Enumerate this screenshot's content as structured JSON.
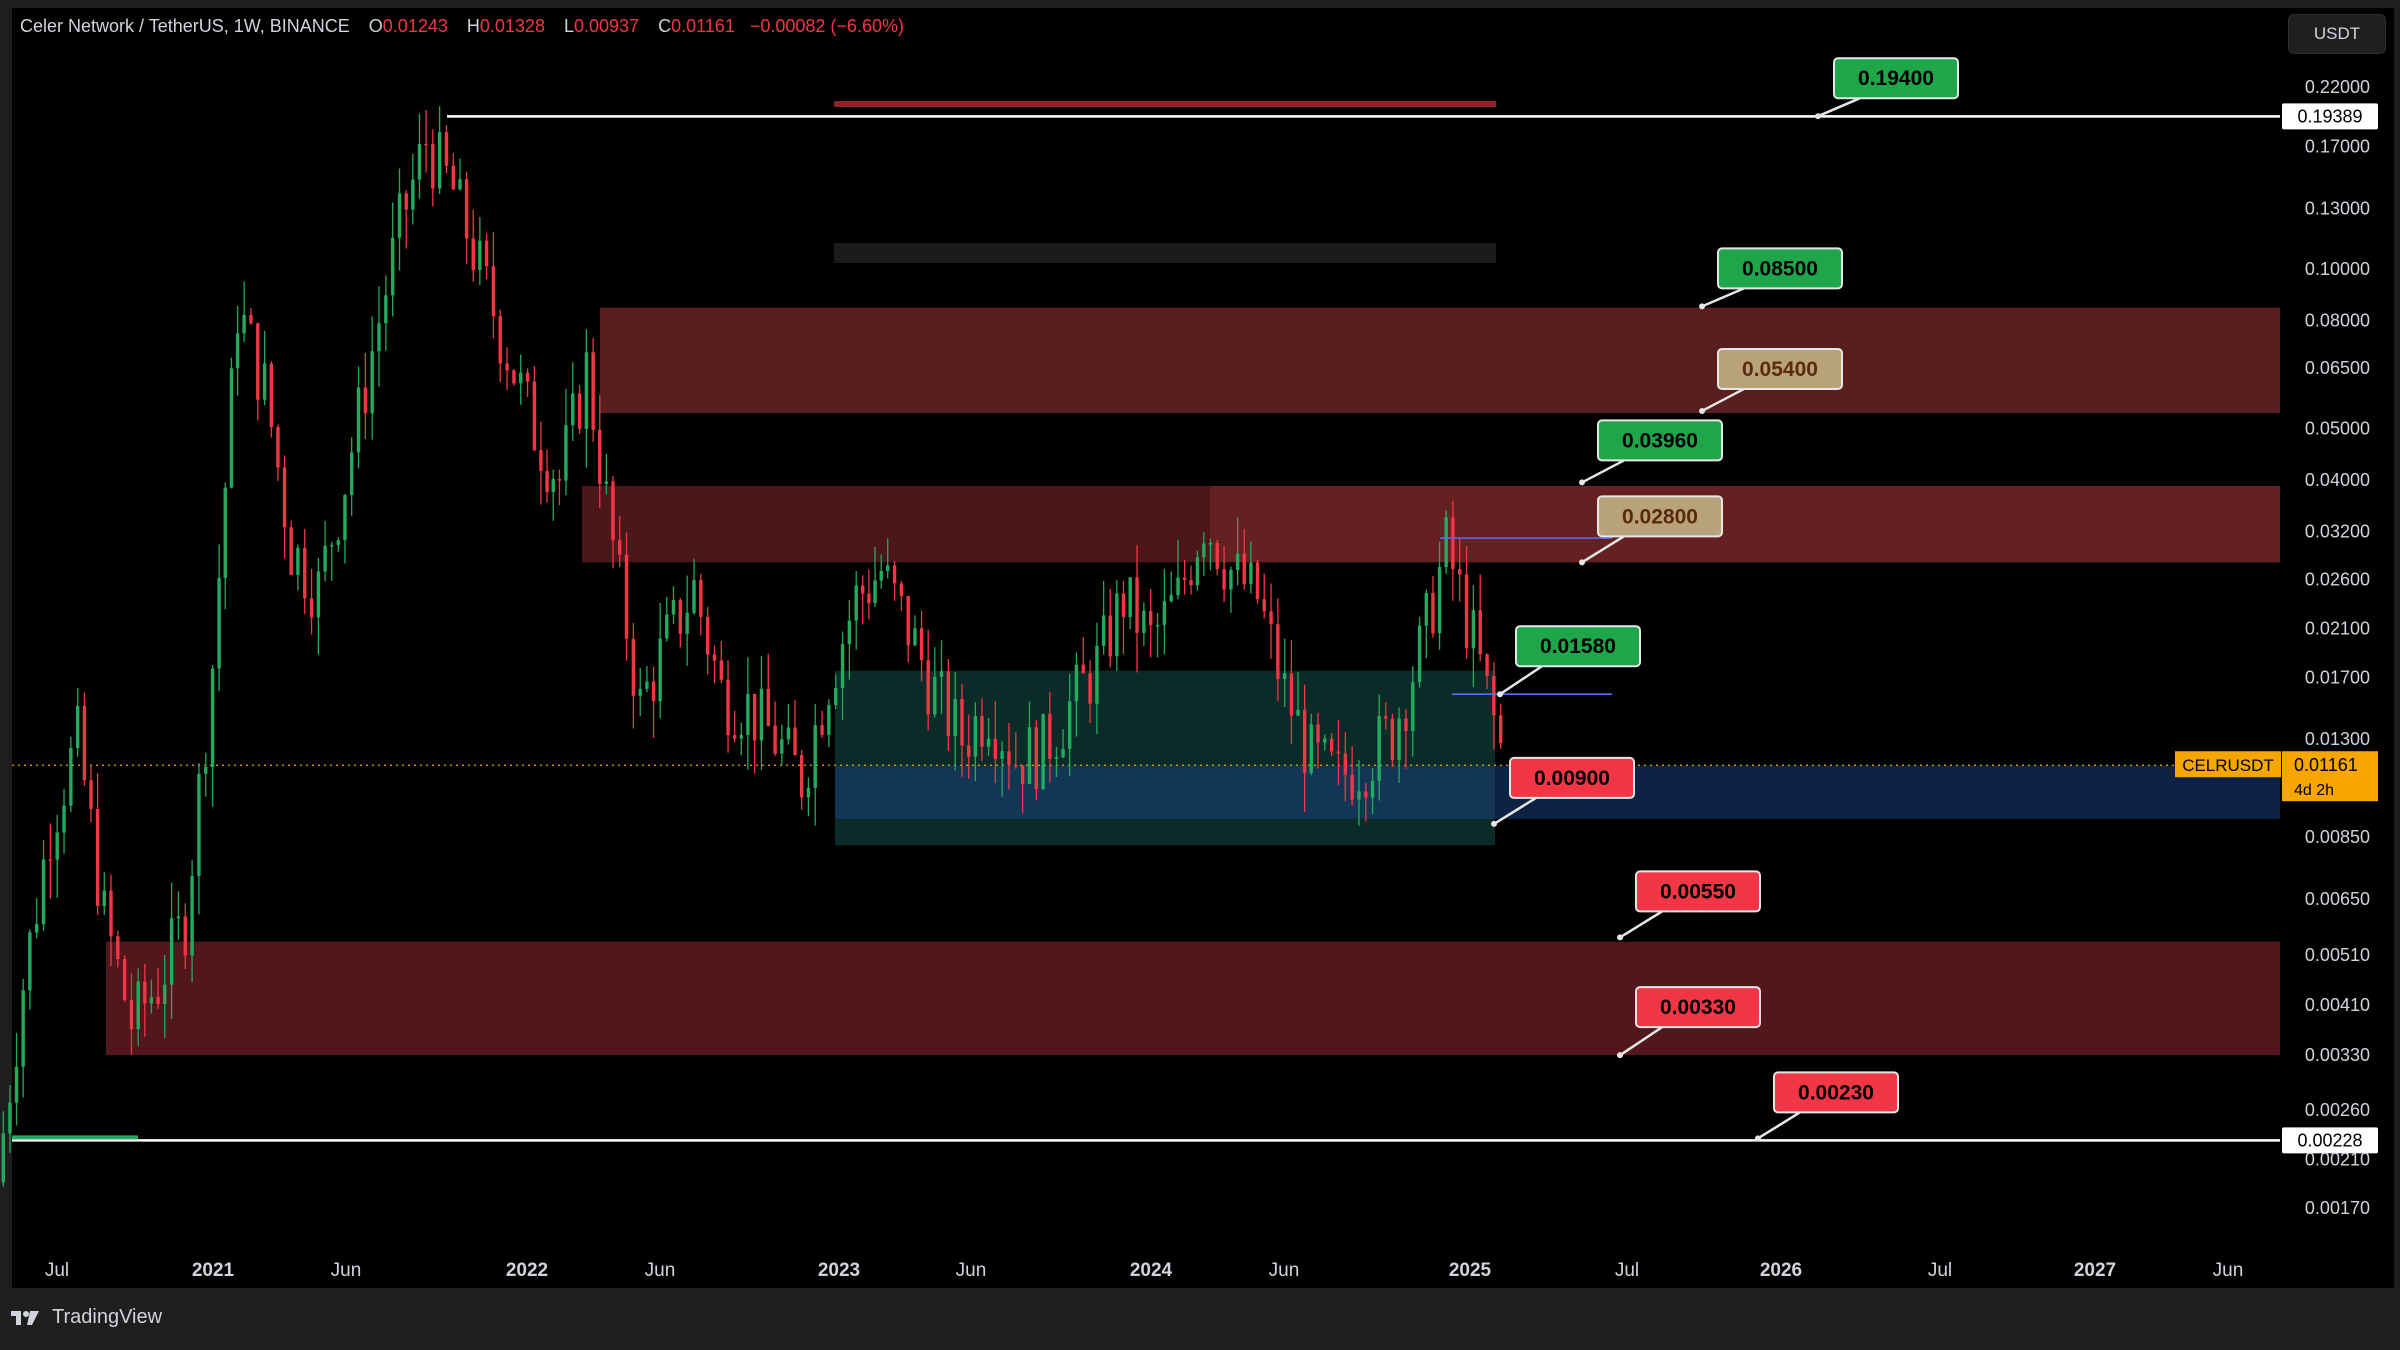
{
  "header": {
    "symbol": "Celer Network / TetherUS, 1W, BINANCE",
    "open_key": "O",
    "open": "0.01243",
    "high_key": "H",
    "high": "0.01328",
    "low_key": "L",
    "low": "0.00937",
    "close_key": "C",
    "close": "0.01161",
    "change": "−0.00082 (−6.60%)"
  },
  "currency_button": "USDT",
  "brand": {
    "name": "TradingView",
    "icon": "tradingview-logo-icon"
  },
  "colors": {
    "up": "#22ab5e",
    "down": "#f23645",
    "resistance_zone": "#6b2323",
    "support_zone": "#5a1a1f",
    "range_box": "#0d3a34",
    "blue_zone": "#1a3f7a",
    "price_tag": "#f7a600"
  },
  "chart_data": {
    "type": "candlestick",
    "interval": "1W",
    "x_axis": [
      "Jul",
      "2021",
      "Jun",
      "2022",
      "Jun",
      "2023",
      "Jun",
      "2024",
      "Jun",
      "2025",
      "Jul",
      "2026",
      "Jul",
      "2027",
      "Jun"
    ],
    "y_scale": "log",
    "y_ticks": [
      "0.22000",
      "0.17000",
      "0.13000",
      "0.10000",
      "0.08000",
      "0.06500",
      "0.05000",
      "0.04000",
      "0.03200",
      "0.02600",
      "0.02100",
      "0.01700",
      "0.01300",
      "0.00850",
      "0.00650",
      "0.00510",
      "0.00410",
      "0.00330",
      "0.00260",
      "0.00210",
      "0.00170"
    ],
    "ylim": [
      0.0016,
      0.235
    ],
    "last_price": {
      "symbol": "CELRUSDT",
      "value": "0.01161",
      "countdown": "4d 2h"
    },
    "horizontal_lines": [
      {
        "label": "0.19389",
        "price": 0.19389
      },
      {
        "label": "0.00228",
        "price": 0.00228
      }
    ],
    "levels": [
      {
        "label": "0.19400",
        "price": 0.194,
        "style": "green"
      },
      {
        "label": "0.08500",
        "price": 0.085,
        "style": "green"
      },
      {
        "label": "0.05400",
        "price": 0.054,
        "style": "tan"
      },
      {
        "label": "0.03960",
        "price": 0.0396,
        "style": "green"
      },
      {
        "label": "0.02800",
        "price": 0.028,
        "style": "tan"
      },
      {
        "label": "0.01580",
        "price": 0.0158,
        "style": "green"
      },
      {
        "label": "0.00900",
        "price": 0.009,
        "style": "red"
      },
      {
        "label": "0.00550",
        "price": 0.0055,
        "style": "red"
      },
      {
        "label": "0.00330",
        "price": 0.0033,
        "style": "red"
      },
      {
        "label": "0.00230",
        "price": 0.0023,
        "style": "red"
      }
    ],
    "zones": [
      {
        "name": "upper-resistance",
        "from": 0.0535,
        "to": 0.0845
      },
      {
        "name": "mid-resistance",
        "from": 0.028,
        "to": 0.039
      },
      {
        "name": "lower-support",
        "from": 0.0033,
        "to": 0.0054
      },
      {
        "name": "blue-support",
        "from": 0.0092,
        "to": 0.0116
      },
      {
        "name": "range-box",
        "from": 0.0082,
        "to": 0.0175
      }
    ],
    "price_path": [
      [
        "2020-06",
        0.0019
      ],
      [
        "2020-07",
        0.0045
      ],
      [
        "2020-08",
        0.009
      ],
      [
        "2020-09",
        0.013
      ],
      [
        "2020-10",
        0.006
      ],
      [
        "2020-11",
        0.0038
      ],
      [
        "2020-12",
        0.0045
      ],
      [
        "2021-01",
        0.006
      ],
      [
        "2021-02",
        0.018
      ],
      [
        "2021-03",
        0.085
      ],
      [
        "2021-04",
        0.06
      ],
      [
        "2021-05",
        0.03
      ],
      [
        "2021-06",
        0.025
      ],
      [
        "2021-07",
        0.04
      ],
      [
        "2021-08",
        0.07
      ],
      [
        "2021-09",
        0.12
      ],
      [
        "2021-10",
        0.175
      ],
      [
        "2021-11",
        0.14
      ],
      [
        "2021-12",
        0.1
      ],
      [
        "2022-01",
        0.07
      ],
      [
        "2022-02",
        0.05
      ],
      [
        "2022-03",
        0.04
      ],
      [
        "2022-04",
        0.065
      ],
      [
        "2022-05",
        0.03
      ],
      [
        "2022-06",
        0.015
      ],
      [
        "2022-07",
        0.02
      ],
      [
        "2022-08",
        0.025
      ],
      [
        "2022-09",
        0.016
      ],
      [
        "2022-10",
        0.015
      ],
      [
        "2022-11",
        0.013
      ],
      [
        "2022-12",
        0.011
      ],
      [
        "2023-01",
        0.017
      ],
      [
        "2023-02",
        0.024
      ],
      [
        "2023-03",
        0.027
      ],
      [
        "2023-04",
        0.021
      ],
      [
        "2023-05",
        0.016
      ],
      [
        "2023-06",
        0.013
      ],
      [
        "2023-07",
        0.015
      ],
      [
        "2023-08",
        0.012
      ],
      [
        "2023-09",
        0.0125
      ],
      [
        "2023-10",
        0.015
      ],
      [
        "2023-11",
        0.018
      ],
      [
        "2023-12",
        0.024
      ],
      [
        "2024-01",
        0.02
      ],
      [
        "2024-02",
        0.024
      ],
      [
        "2024-03",
        0.034
      ],
      [
        "2024-04",
        0.027
      ],
      [
        "2024-05",
        0.024
      ],
      [
        "2024-06",
        0.016
      ],
      [
        "2024-07",
        0.012
      ],
      [
        "2024-08",
        0.011
      ],
      [
        "2024-09",
        0.012
      ],
      [
        "2024-10",
        0.0135
      ],
      [
        "2024-11",
        0.019
      ],
      [
        "2024-12",
        0.03
      ],
      [
        "2025-01",
        0.02
      ],
      [
        "2025-02",
        0.0125
      ]
    ]
  }
}
